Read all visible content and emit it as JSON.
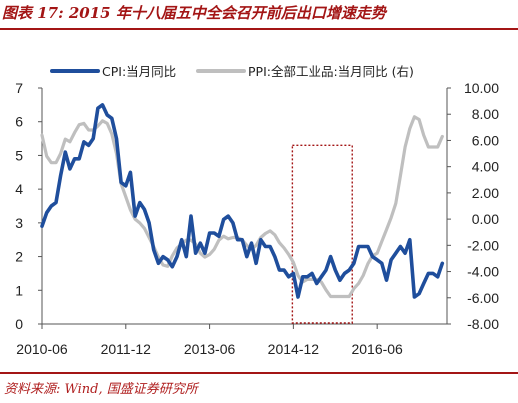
{
  "title": "图表 17: 2015 年十八届五中全会召开前后出口增速走势",
  "source": "资料来源: Wind, 国盛证券研究所",
  "chart_data": {
    "type": "line",
    "x_ticks": [
      "2010-06",
      "2011-12",
      "2013-06",
      "2014-12",
      "2016-06"
    ],
    "x_range": [
      "2010-06",
      "2017-09"
    ],
    "y_left": {
      "ticks": [
        "0",
        "1",
        "2",
        "3",
        "4",
        "5",
        "6",
        "7"
      ],
      "ylim": [
        0,
        7
      ]
    },
    "y_right": {
      "ticks": [
        "-8.00",
        "-6.00",
        "-4.00",
        "-2.00",
        "0.00",
        "2.00",
        "4.00",
        "6.00",
        "8.00",
        "10.00"
      ],
      "ylim": [
        -8,
        10
      ]
    },
    "grid": false,
    "legend_position": "top",
    "series": [
      {
        "name": "CPI:当月同比",
        "axis": "left",
        "color": "#1f4e9c",
        "points": [
          [
            "2010-06",
            2.9
          ],
          [
            "2010-07",
            3.3
          ],
          [
            "2010-08",
            3.5
          ],
          [
            "2010-09",
            3.6
          ],
          [
            "2010-10",
            4.4
          ],
          [
            "2010-11",
            5.1
          ],
          [
            "2010-12",
            4.6
          ],
          [
            "2011-01",
            4.9
          ],
          [
            "2011-02",
            4.9
          ],
          [
            "2011-03",
            5.4
          ],
          [
            "2011-04",
            5.3
          ],
          [
            "2011-05",
            5.5
          ],
          [
            "2011-06",
            6.4
          ],
          [
            "2011-07",
            6.5
          ],
          [
            "2011-08",
            6.2
          ],
          [
            "2011-09",
            6.1
          ],
          [
            "2011-10",
            5.5
          ],
          [
            "2011-11",
            4.2
          ],
          [
            "2011-12",
            4.1
          ],
          [
            "2012-01",
            4.5
          ],
          [
            "2012-02",
            3.2
          ],
          [
            "2012-03",
            3.6
          ],
          [
            "2012-04",
            3.4
          ],
          [
            "2012-05",
            3.0
          ],
          [
            "2012-06",
            2.2
          ],
          [
            "2012-07",
            1.8
          ],
          [
            "2012-08",
            2.0
          ],
          [
            "2012-09",
            1.9
          ],
          [
            "2012-10",
            1.7
          ],
          [
            "2012-11",
            2.0
          ],
          [
            "2012-12",
            2.5
          ],
          [
            "2013-01",
            2.0
          ],
          [
            "2013-02",
            3.2
          ],
          [
            "2013-03",
            2.1
          ],
          [
            "2013-04",
            2.4
          ],
          [
            "2013-05",
            2.1
          ],
          [
            "2013-06",
            2.7
          ],
          [
            "2013-07",
            2.7
          ],
          [
            "2013-08",
            2.6
          ],
          [
            "2013-09",
            3.1
          ],
          [
            "2013-10",
            3.2
          ],
          [
            "2013-11",
            3.0
          ],
          [
            "2013-12",
            2.5
          ],
          [
            "2014-01",
            2.5
          ],
          [
            "2014-02",
            2.0
          ],
          [
            "2014-03",
            2.4
          ],
          [
            "2014-04",
            1.8
          ],
          [
            "2014-05",
            2.5
          ],
          [
            "2014-06",
            2.3
          ],
          [
            "2014-07",
            2.3
          ],
          [
            "2014-08",
            2.0
          ],
          [
            "2014-09",
            1.6
          ],
          [
            "2014-10",
            1.6
          ],
          [
            "2014-11",
            1.4
          ],
          [
            "2014-12",
            1.5
          ],
          [
            "2015-01",
            0.8
          ],
          [
            "2015-02",
            1.4
          ],
          [
            "2015-03",
            1.4
          ],
          [
            "2015-04",
            1.5
          ],
          [
            "2015-05",
            1.2
          ],
          [
            "2015-06",
            1.4
          ],
          [
            "2015-07",
            1.6
          ],
          [
            "2015-08",
            2.0
          ],
          [
            "2015-09",
            1.6
          ],
          [
            "2015-10",
            1.3
          ],
          [
            "2015-11",
            1.5
          ],
          [
            "2015-12",
            1.6
          ],
          [
            "2016-01",
            1.8
          ],
          [
            "2016-02",
            2.3
          ],
          [
            "2016-03",
            2.3
          ],
          [
            "2016-04",
            2.3
          ],
          [
            "2016-05",
            2.0
          ],
          [
            "2016-06",
            1.9
          ],
          [
            "2016-07",
            1.8
          ],
          [
            "2016-08",
            1.3
          ],
          [
            "2016-09",
            1.9
          ],
          [
            "2016-10",
            2.1
          ],
          [
            "2016-11",
            2.3
          ],
          [
            "2016-12",
            2.1
          ],
          [
            "2017-01",
            2.5
          ],
          [
            "2017-02",
            0.8
          ],
          [
            "2017-03",
            0.9
          ],
          [
            "2017-04",
            1.2
          ],
          [
            "2017-05",
            1.5
          ],
          [
            "2017-06",
            1.5
          ],
          [
            "2017-07",
            1.4
          ],
          [
            "2017-08",
            1.8
          ]
        ]
      },
      {
        "name": "PPI:全部工业品:当月同比 (右)",
        "axis": "right",
        "color": "#bfbfbf",
        "points": [
          [
            "2010-06",
            6.4
          ],
          [
            "2010-07",
            4.8
          ],
          [
            "2010-08",
            4.3
          ],
          [
            "2010-09",
            4.3
          ],
          [
            "2010-10",
            5.0
          ],
          [
            "2010-11",
            6.1
          ],
          [
            "2010-12",
            5.9
          ],
          [
            "2011-01",
            6.6
          ],
          [
            "2011-02",
            7.2
          ],
          [
            "2011-03",
            7.3
          ],
          [
            "2011-04",
            6.8
          ],
          [
            "2011-05",
            6.8
          ],
          [
            "2011-06",
            7.1
          ],
          [
            "2011-07",
            7.5
          ],
          [
            "2011-08",
            7.3
          ],
          [
            "2011-09",
            6.5
          ],
          [
            "2011-10",
            5.0
          ],
          [
            "2011-11",
            2.7
          ],
          [
            "2011-12",
            1.7
          ],
          [
            "2012-01",
            0.7
          ],
          [
            "2012-02",
            0.0
          ],
          [
            "2012-03",
            -0.3
          ],
          [
            "2012-04",
            -0.7
          ],
          [
            "2012-05",
            -1.4
          ],
          [
            "2012-06",
            -2.1
          ],
          [
            "2012-07",
            -2.9
          ],
          [
            "2012-08",
            -3.5
          ],
          [
            "2012-09",
            -3.6
          ],
          [
            "2012-10",
            -2.8
          ],
          [
            "2012-11",
            -2.2
          ],
          [
            "2012-12",
            -1.9
          ],
          [
            "2013-01",
            -1.6
          ],
          [
            "2013-02",
            -1.6
          ],
          [
            "2013-03",
            -1.9
          ],
          [
            "2013-04",
            -2.6
          ],
          [
            "2013-05",
            -2.9
          ],
          [
            "2013-06",
            -2.7
          ],
          [
            "2013-07",
            -2.3
          ],
          [
            "2013-08",
            -1.6
          ],
          [
            "2013-09",
            -1.3
          ],
          [
            "2013-10",
            -1.5
          ],
          [
            "2013-11",
            -1.4
          ],
          [
            "2013-12",
            -1.4
          ],
          [
            "2014-01",
            -1.6
          ],
          [
            "2014-02",
            -2.0
          ],
          [
            "2014-03",
            -2.3
          ],
          [
            "2014-04",
            -2.0
          ],
          [
            "2014-05",
            -1.4
          ],
          [
            "2014-06",
            -1.1
          ],
          [
            "2014-07",
            -0.9
          ],
          [
            "2014-08",
            -1.2
          ],
          [
            "2014-09",
            -1.8
          ],
          [
            "2014-10",
            -2.2
          ],
          [
            "2014-11",
            -2.7
          ],
          [
            "2014-12",
            -3.3
          ],
          [
            "2015-01",
            -4.3
          ],
          [
            "2015-02",
            -4.8
          ],
          [
            "2015-03",
            -4.6
          ],
          [
            "2015-04",
            -4.6
          ],
          [
            "2015-05",
            -4.6
          ],
          [
            "2015-06",
            -4.8
          ],
          [
            "2015-07",
            -5.4
          ],
          [
            "2015-08",
            -5.9
          ],
          [
            "2015-09",
            -5.9
          ],
          [
            "2015-10",
            -5.9
          ],
          [
            "2015-11",
            -5.9
          ],
          [
            "2015-12",
            -5.9
          ],
          [
            "2016-01",
            -5.3
          ],
          [
            "2016-02",
            -4.9
          ],
          [
            "2016-03",
            -4.3
          ],
          [
            "2016-04",
            -3.4
          ],
          [
            "2016-05",
            -2.8
          ],
          [
            "2016-06",
            -2.6
          ],
          [
            "2016-07",
            -1.7
          ],
          [
            "2016-08",
            -0.8
          ],
          [
            "2016-09",
            0.1
          ],
          [
            "2016-10",
            1.2
          ],
          [
            "2016-11",
            3.3
          ],
          [
            "2016-12",
            5.5
          ],
          [
            "2017-01",
            6.9
          ],
          [
            "2017-02",
            7.8
          ],
          [
            "2017-03",
            7.6
          ],
          [
            "2017-04",
            6.4
          ],
          [
            "2017-05",
            5.5
          ],
          [
            "2017-06",
            5.5
          ],
          [
            "2017-07",
            5.5
          ],
          [
            "2017-08",
            6.3
          ]
        ]
      }
    ],
    "annotation": {
      "type": "dotted-box",
      "color": "#a31515",
      "x_from": "2014-12",
      "x_to": "2015-12",
      "y_left_from": 0,
      "y_left_to": 5.3
    }
  }
}
